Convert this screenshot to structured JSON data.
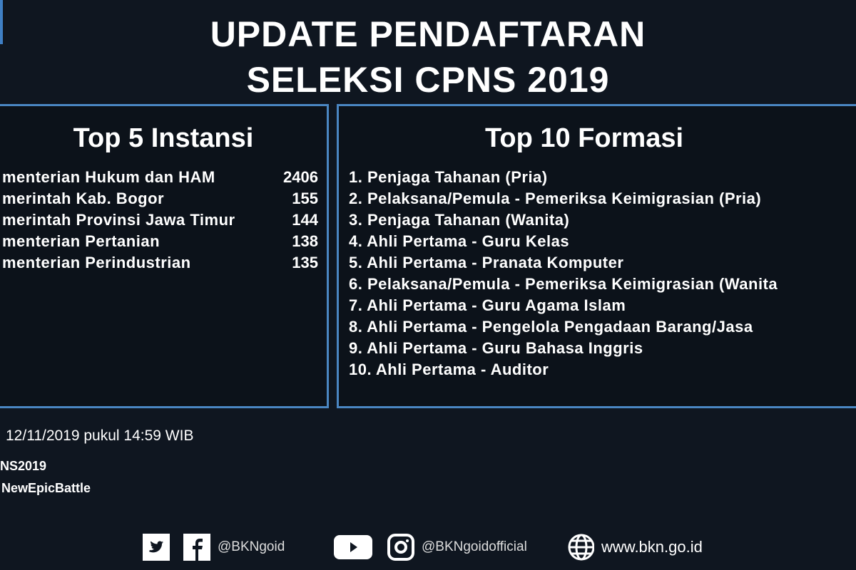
{
  "header": {
    "line1": "UPDATE PENDAFTARAN",
    "line2": "SELEKSI CPNS 2019"
  },
  "instansi": {
    "title": "Top 5 Instansi",
    "items": [
      {
        "name": "menterian Hukum dan HAM",
        "value": "2406"
      },
      {
        "name": "merintah Kab. Bogor",
        "value": "155"
      },
      {
        "name": "merintah Provinsi Jawa Timur",
        "value": "144"
      },
      {
        "name": "menterian Pertanian",
        "value": "138"
      },
      {
        "name": "menterian Perindustrian",
        "value": "135"
      }
    ]
  },
  "formasi": {
    "title": "Top 10 Formasi",
    "items": [
      "1. Penjaga Tahanan (Pria)",
      "2. Pelaksana/Pemula - Pemeriksa Keimigrasian (Pria)",
      "3. Penjaga Tahanan (Wanita)",
      "4. Ahli Pertama - Guru Kelas",
      "5. Ahli Pertama - Pranata Komputer",
      "6. Pelaksana/Pemula - Pemeriksa Keimigrasian (Wanita",
      "7. Ahli Pertama - Guru Agama Islam",
      "8. Ahli Pertama - Pengelola Pengadaan Barang/Jasa",
      "9. Ahli Pertama - Guru Bahasa Inggris",
      "10. Ahli Pertama - Auditor"
    ]
  },
  "footer": {
    "timestamp": "12/11/2019 pukul 14:59 WIB",
    "hashtag1": "NS2019",
    "hashtag2": "NewEpicBattle"
  },
  "social": {
    "handle1": "@BKNgoid",
    "handle2": "@BKNgoidofficial",
    "website": "www.bkn.go.id",
    "icons": [
      "twitter-icon",
      "facebook-icon",
      "youtube-icon",
      "instagram-icon",
      "globe-icon"
    ]
  },
  "colors": {
    "background": "#0f1620",
    "panel_border": "#4a86c2",
    "text": "#ffffff"
  }
}
